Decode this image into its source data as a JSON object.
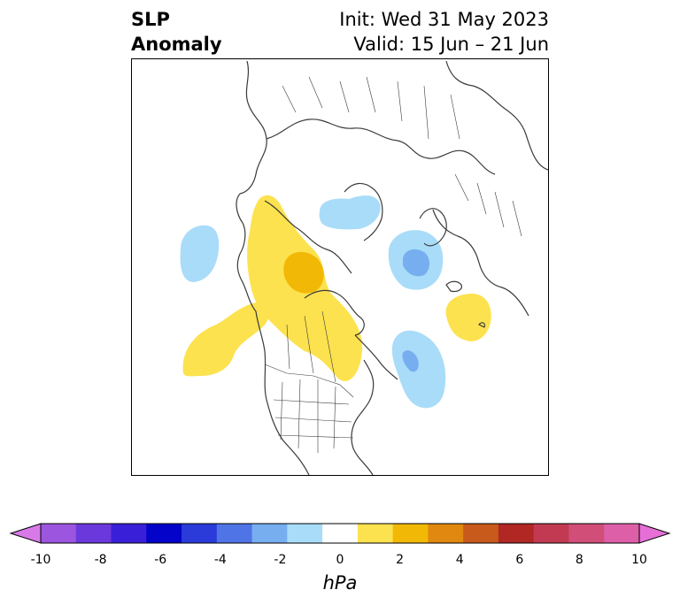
{
  "header": {
    "title_line1": "SLP",
    "title_line2": "Anomaly",
    "init_text": "Init: Wed 31 May 2023",
    "valid_text": "Valid: 15 Jun – 21 Jun"
  },
  "colorbar": {
    "units": "hPa",
    "ticks": [
      "-10",
      "-8",
      "-6",
      "-4",
      "-2",
      "0",
      "2",
      "4",
      "6",
      "8",
      "10"
    ],
    "colors": [
      "#d77ae8",
      "#9b55de",
      "#6b38db",
      "#3a1fd9",
      "#0303c9",
      "#2a3bd9",
      "#4f74e6",
      "#77aef0",
      "#a9dcf8",
      "#ffffff",
      "#fce24f",
      "#f2b806",
      "#e0880f",
      "#c85a1b",
      "#b02724",
      "#c23a52",
      "#d04e78",
      "#dc5fa8",
      "#e66fd7"
    ]
  },
  "map": {
    "projection": "polar-stereographic",
    "coastline_color": "#3a3a3a",
    "anomaly_fill_colors": {
      "pos_light": "#fce24f",
      "pos_mid": "#f2b806",
      "neg_light": "#a9dcf8",
      "neg_mid": "#77aef0"
    }
  }
}
